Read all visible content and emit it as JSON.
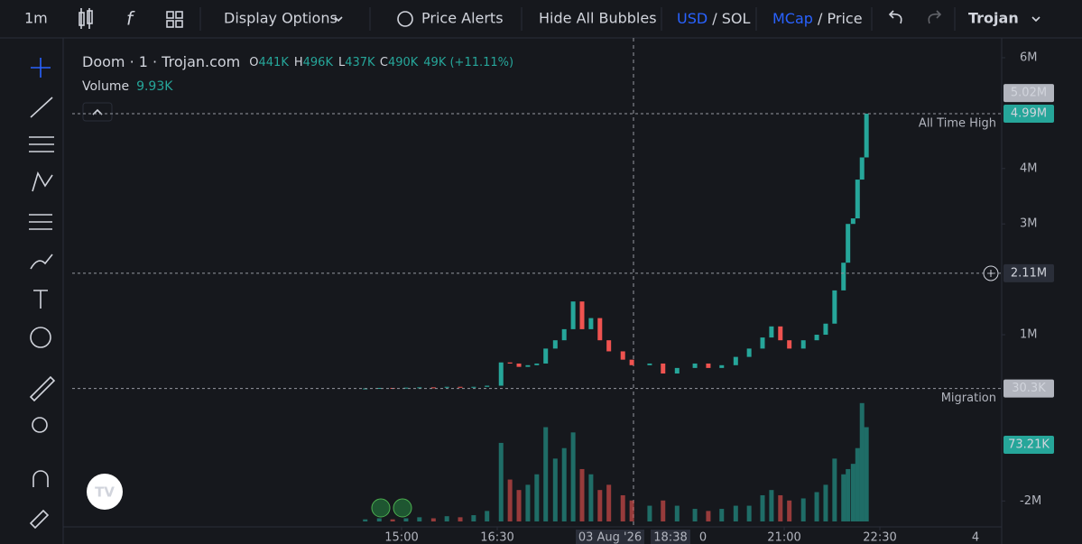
{
  "toolbar": {
    "interval": "1m",
    "display_options": "Display Options",
    "price_alerts": "Price Alerts",
    "hide_bubbles": "Hide All Bubbles",
    "usd": "USD",
    "sol": "SOL",
    "mcap": "MCap",
    "price": "Price",
    "slash": "/",
    "platform": "Trojan"
  },
  "legend": {
    "symbol": "Doom · 1 · Trojan.com",
    "o_label": "O",
    "o": "441K",
    "h_label": "H",
    "h": "496K",
    "l_label": "L",
    "l": "437K",
    "c_label": "C",
    "c": "490K",
    "change": "49K (+11.11%)",
    "volume_label": "Volume",
    "volume": "9.93K"
  },
  "chart_data": {
    "type": "candlestick",
    "x": [
      14.43,
      14.65,
      14.86,
      15.07,
      15.28,
      15.5,
      15.71,
      15.92,
      16.13,
      16.34,
      16.56,
      16.7,
      16.84,
      16.98,
      17.12,
      17.26,
      17.41,
      17.55,
      17.69,
      17.83,
      17.97,
      18.11,
      18.25,
      18.47,
      18.61,
      18.89,
      19.1,
      19.32,
      19.6,
      19.81,
      20.02,
      20.24,
      20.45,
      20.66,
      20.8,
      20.94,
      21.08,
      21.3,
      21.51,
      21.65,
      21.79,
      21.93,
      22.0,
      22.08,
      22.15,
      22.22,
      22.29
    ],
    "series": [
      {
        "name": "Doom",
        "up_color": "#26a69a",
        "down_color": "#ef5350",
        "values": [
          30000,
          40000,
          35000,
          45000,
          50000,
          45000,
          60000,
          55000,
          60000,
          80000,
          500000,
          480000,
          420000,
          450000,
          480000,
          750000,
          900000,
          1100000,
          1600000,
          1100000,
          1300000,
          900000,
          700000,
          550000,
          450000,
          480000,
          300000,
          400000,
          480000,
          400000,
          450000,
          600000,
          750000,
          950000,
          1150000,
          900000,
          750000,
          900000,
          1000000,
          1200000,
          1800000,
          2300000,
          3000000,
          3100000,
          3800000,
          4200000,
          4990000
        ]
      },
      {
        "name": "Volume",
        "values": [
          2000,
          3000,
          2000,
          3000,
          4000,
          3000,
          5000,
          4000,
          6000,
          10000,
          75000,
          40000,
          30000,
          35000,
          45000,
          90000,
          60000,
          70000,
          85000,
          50000,
          45000,
          30000,
          35000,
          25000,
          20000,
          15000,
          20000,
          15000,
          12000,
          10000,
          12000,
          15000,
          15000,
          25000,
          30000,
          25000,
          20000,
          22000,
          28000,
          35000,
          60000,
          45000,
          50000,
          55000,
          70000,
          113000,
          90000
        ]
      }
    ],
    "xlim": [
      9.835,
      24.41
    ],
    "xticks": [
      {
        "value": 15,
        "label": "15:00"
      },
      {
        "value": 16.5,
        "label": "16:30"
      },
      {
        "value": 21,
        "label": "21:00"
      },
      {
        "value": 22.5,
        "label": "22:30"
      }
    ],
    "x_extra_labels": [
      "03 Aug '26",
      "18:38",
      "0",
      "4"
    ],
    "ylim": [
      -2370000,
      6390000
    ],
    "yticks": [
      {
        "value": 6000000,
        "label": "6M"
      },
      {
        "value": 4000000,
        "label": "4M"
      },
      {
        "value": 3000000,
        "label": "3M"
      },
      {
        "value": 1000000,
        "label": "1M"
      },
      {
        "value": -2000000,
        "label": "-2M"
      }
    ],
    "price_lines": [
      {
        "value": 4990000,
        "label": "4.99M",
        "annotation": "All Time High",
        "color": "#26a69a"
      },
      {
        "value": 2110000,
        "label": "2.11M",
        "color": "#2a2e39"
      },
      {
        "value": 30300,
        "label": "30.3K",
        "annotation": "Migration",
        "color": "#b2b5be"
      }
    ],
    "extra_price_label": {
      "value": 5020000,
      "label": "5.02M"
    },
    "volume_label": {
      "value": 73210,
      "label": "73.21K"
    }
  }
}
